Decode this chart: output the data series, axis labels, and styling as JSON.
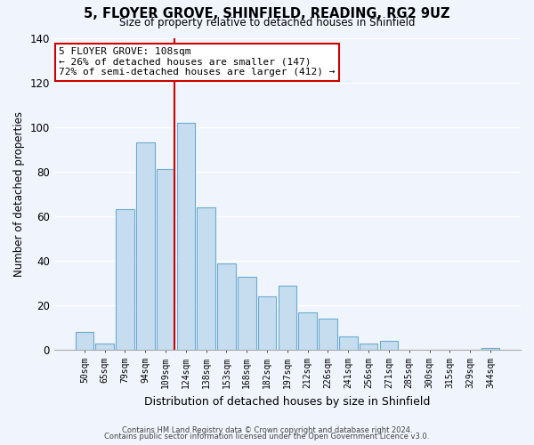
{
  "title": "5, FLOYER GROVE, SHINFIELD, READING, RG2 9UZ",
  "subtitle": "Size of property relative to detached houses in Shinfield",
  "xlabel": "Distribution of detached houses by size in Shinfield",
  "ylabel": "Number of detached properties",
  "bar_labels": [
    "50sqm",
    "65sqm",
    "79sqm",
    "94sqm",
    "109sqm",
    "124sqm",
    "138sqm",
    "153sqm",
    "168sqm",
    "182sqm",
    "197sqm",
    "212sqm",
    "226sqm",
    "241sqm",
    "256sqm",
    "271sqm",
    "285sqm",
    "300sqm",
    "315sqm",
    "329sqm",
    "344sqm"
  ],
  "bar_heights": [
    8,
    3,
    63,
    93,
    81,
    102,
    64,
    39,
    33,
    24,
    29,
    17,
    14,
    6,
    3,
    4,
    0,
    0,
    0,
    0,
    1
  ],
  "bar_color": "#c5ddef",
  "bar_edge_color": "#6aabd2",
  "vline_color": "#cc0000",
  "annotation_title": "5 FLOYER GROVE: 108sqm",
  "annotation_line1": "← 26% of detached houses are smaller (147)",
  "annotation_line2": "72% of semi-detached houses are larger (412) →",
  "annotation_box_facecolor": "#ffffff",
  "annotation_box_edgecolor": "#cc0000",
  "ylim": [
    0,
    140
  ],
  "yticks": [
    0,
    20,
    40,
    60,
    80,
    100,
    120,
    140
  ],
  "bg_color": "#f0f4fc",
  "footer1": "Contains HM Land Registry data © Crown copyright and database right 2024.",
  "footer2": "Contains public sector information licensed under the Open Government Licence v3.0."
}
